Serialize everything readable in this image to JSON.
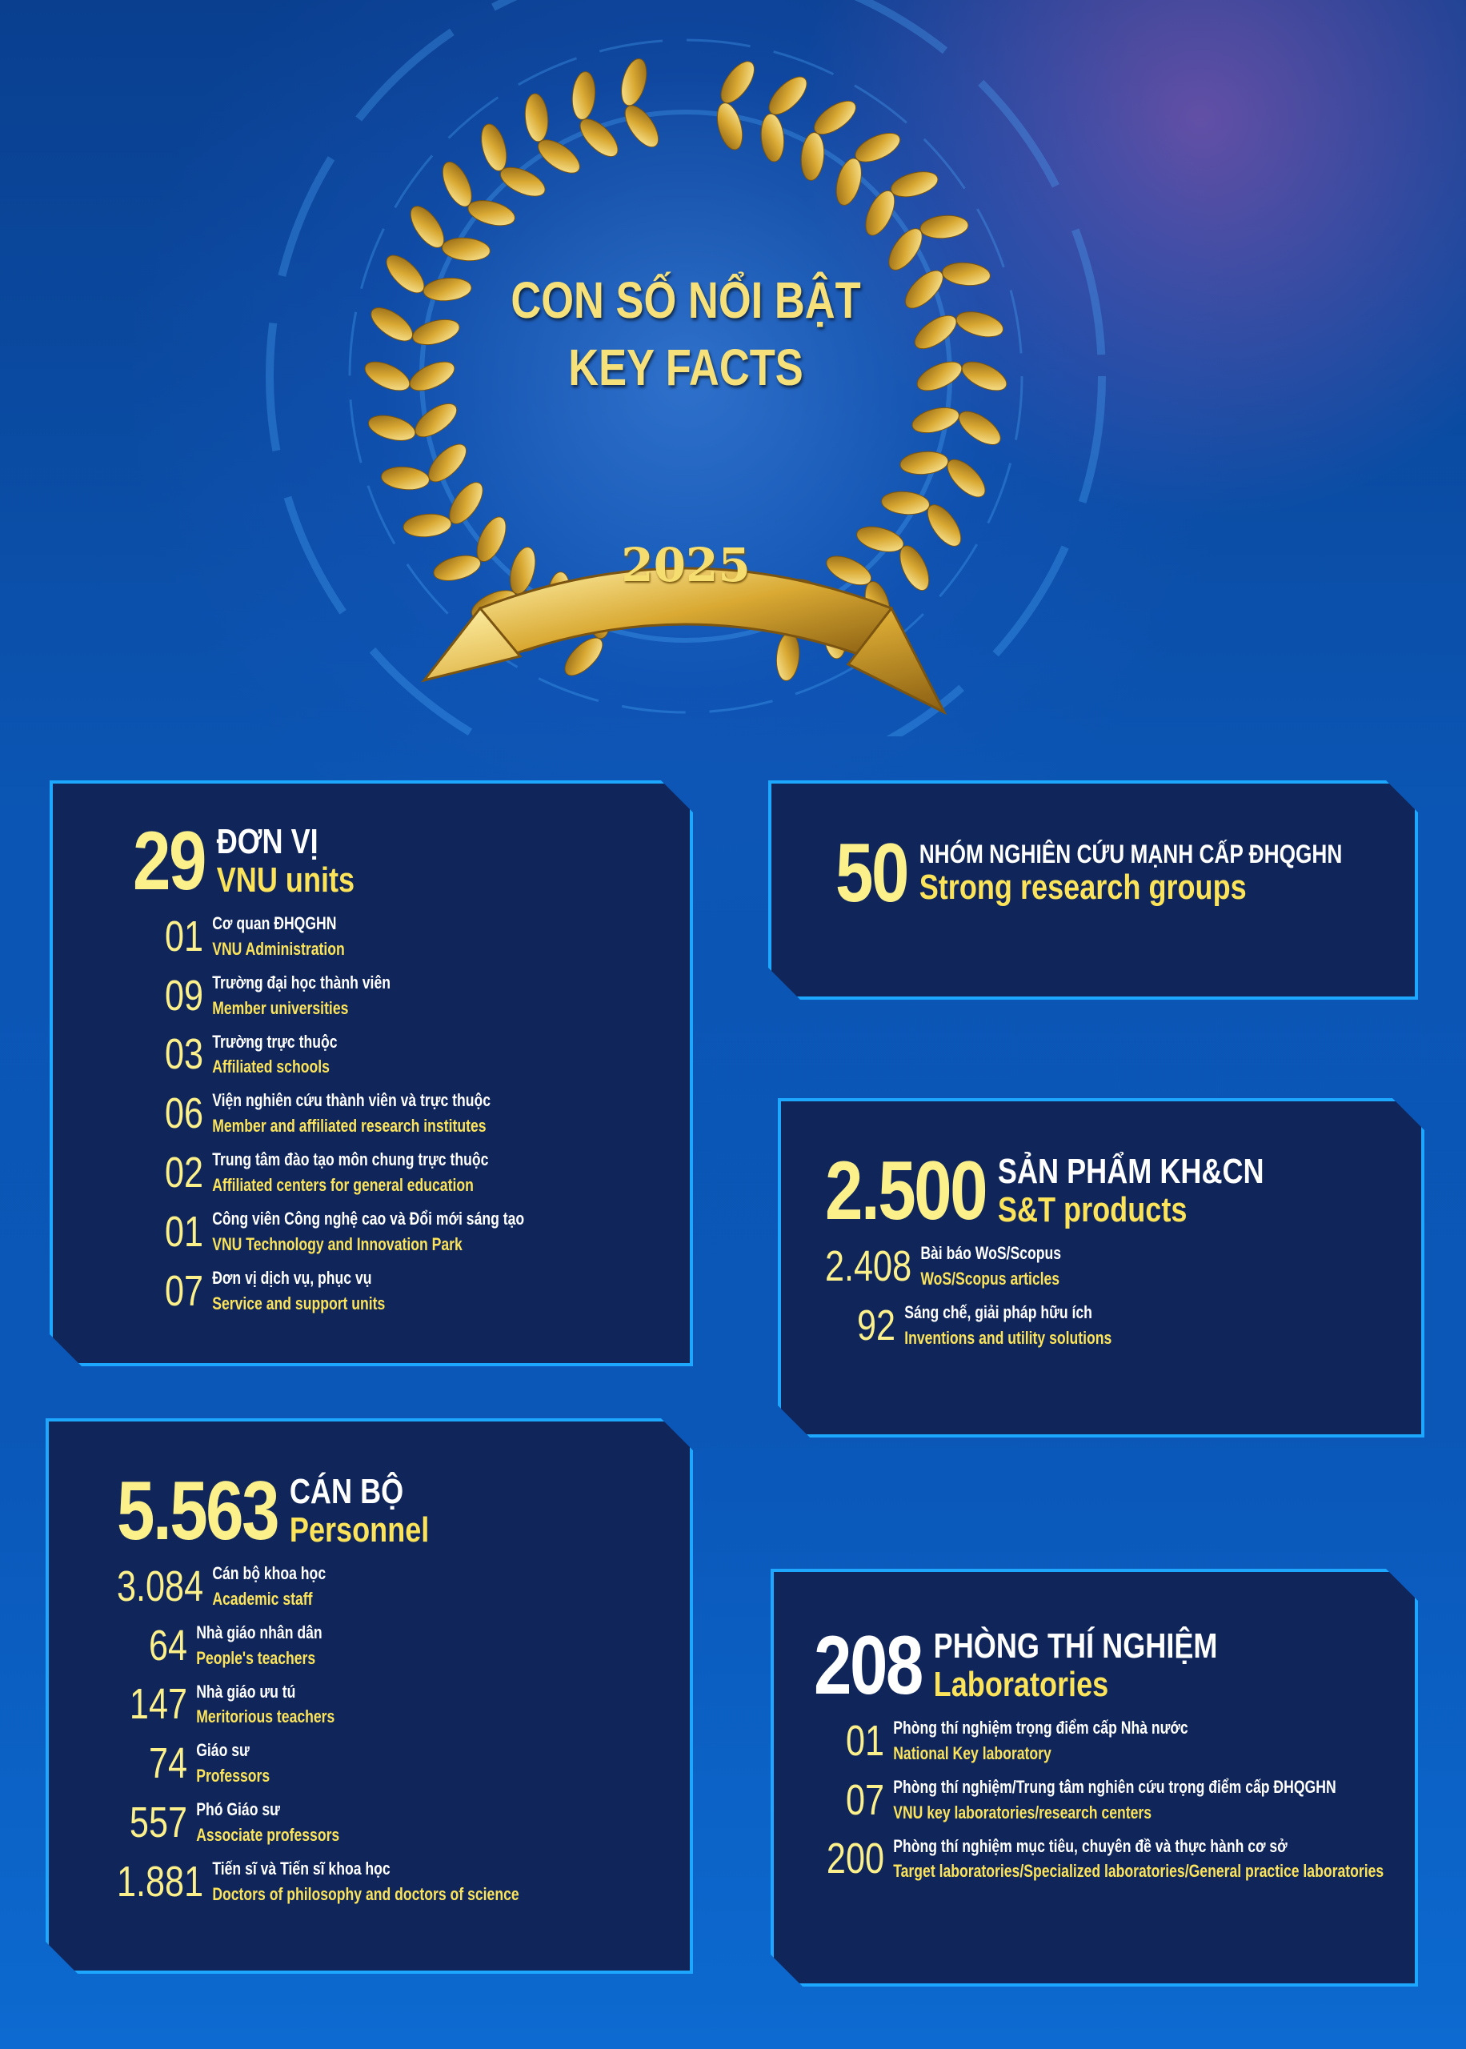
{
  "header": {
    "title_vi": "CON SỐ NỔI BẬT",
    "title_en": "KEY FACTS",
    "year": "2025"
  },
  "panels": [
    {
      "number": "29",
      "label_vi": "ĐƠN VỊ",
      "label_en": "VNU units",
      "items": [
        {
          "number": "01",
          "label_vi": "Cơ quan ĐHQGHN",
          "label_en": "VNU Administration"
        },
        {
          "number": "09",
          "label_vi": "Trường đại học thành viên",
          "label_en": "Member universities"
        },
        {
          "number": "03",
          "label_vi": "Trường trực thuộc",
          "label_en": "Affiliated schools"
        },
        {
          "number": "06",
          "label_vi": "Viện nghiên cứu thành viên và trực thuộc",
          "label_en": "Member and affiliated research institutes"
        },
        {
          "number": "02",
          "label_vi": "Trung tâm đào tạo môn chung trực thuộc",
          "label_en": "Affiliated centers for general education"
        },
        {
          "number": "01",
          "label_vi": "Công viên Công nghệ cao và Đổi mới sáng tạo",
          "label_en": "VNU Technology and Innovation Park"
        },
        {
          "number": "07",
          "label_vi": "Đơn vị dịch vụ, phục vụ",
          "label_en": "Service and support units"
        }
      ]
    },
    {
      "number": "50",
      "label_vi": "NHÓM NGHIÊN CỨU MẠNH CẤP ĐHQGHN",
      "label_en": "Strong research groups",
      "items": []
    },
    {
      "number": "2.500",
      "label_vi": "SẢN PHẨM KH&CN",
      "label_en": "S&T products",
      "items": [
        {
          "number": "2.408",
          "label_vi": "Bài báo WoS/Scopus",
          "label_en": "WoS/Scopus articles"
        },
        {
          "number": "92",
          "label_vi": "Sáng chế, giải pháp hữu ích",
          "label_en": "Inventions and utility solutions"
        }
      ]
    },
    {
      "number": "5.563",
      "label_vi": "CÁN BỘ",
      "label_en": "Personnel",
      "items": [
        {
          "number": "3.084",
          "label_vi": "Cán bộ khoa học",
          "label_en": "Academic staff"
        },
        {
          "number": "64",
          "label_vi": "Nhà giáo nhân dân",
          "label_en": "People's teachers"
        },
        {
          "number": "147",
          "label_vi": "Nhà giáo ưu tú",
          "label_en": "Meritorious teachers"
        },
        {
          "number": "74",
          "label_vi": "Giáo sư",
          "label_en": "Professors"
        },
        {
          "number": "557",
          "label_vi": "Phó Giáo sư",
          "label_en": "Associate professors"
        },
        {
          "number": "1.881",
          "label_vi": "Tiến sĩ và Tiến sĩ khoa học",
          "label_en": "Doctors of philosophy and doctors of science"
        }
      ]
    },
    {
      "number": "208",
      "label_vi": "PHÒNG THÍ NGHIỆM",
      "label_en": "Laboratories",
      "items": [
        {
          "number": "01",
          "label_vi": "Phòng thí nghiệm trọng điểm cấp Nhà nước",
          "label_en": "National Key laboratory"
        },
        {
          "number": "07",
          "label_vi": "Phòng thí nghiệm/Trung tâm nghiên cứu trọng điểm cấp ĐHQGHN",
          "label_en": "VNU key laboratories/research centers"
        },
        {
          "number": "200",
          "label_vi": "Phòng thí nghiệm mục tiêu, chuyên đề và thực hành cơ sở",
          "label_en": "Target laboratories/Specialized laboratories/General practice laboratories"
        }
      ]
    }
  ]
}
